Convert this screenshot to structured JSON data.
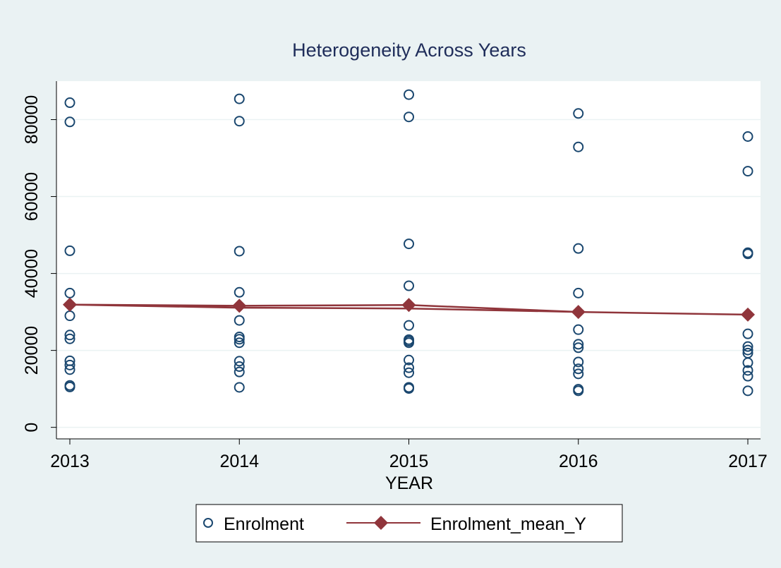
{
  "chart_data": {
    "type": "scatter",
    "title": "Heterogeneity Across Years",
    "xlabel": "YEAR",
    "ylabel": "",
    "x_ticks": [
      "2013",
      "2014",
      "2015",
      "2016",
      "2017"
    ],
    "y_ticks": [
      "0",
      "20000",
      "40000",
      "60000",
      "80000"
    ],
    "xlim": [
      2013,
      2017
    ],
    "ylim": [
      -3000,
      90000
    ],
    "grid": true,
    "legend_position": "bottom",
    "series": [
      {
        "name": "Enrolment",
        "marker": "hollow-circle",
        "color": "#1a476f",
        "points": [
          {
            "x": 2013,
            "y": 84400
          },
          {
            "x": 2013,
            "y": 79400
          },
          {
            "x": 2013,
            "y": 45900
          },
          {
            "x": 2013,
            "y": 34900
          },
          {
            "x": 2013,
            "y": 29000
          },
          {
            "x": 2013,
            "y": 24000
          },
          {
            "x": 2013,
            "y": 23000
          },
          {
            "x": 2013,
            "y": 17300
          },
          {
            "x": 2013,
            "y": 16200
          },
          {
            "x": 2013,
            "y": 15000
          },
          {
            "x": 2013,
            "y": 10900
          },
          {
            "x": 2013,
            "y": 10500
          },
          {
            "x": 2014,
            "y": 85400
          },
          {
            "x": 2014,
            "y": 79600
          },
          {
            "x": 2014,
            "y": 45800
          },
          {
            "x": 2014,
            "y": 35100
          },
          {
            "x": 2014,
            "y": 27800
          },
          {
            "x": 2014,
            "y": 23500
          },
          {
            "x": 2014,
            "y": 22900
          },
          {
            "x": 2014,
            "y": 22000
          },
          {
            "x": 2014,
            "y": 17200
          },
          {
            "x": 2014,
            "y": 15800
          },
          {
            "x": 2014,
            "y": 14400
          },
          {
            "x": 2014,
            "y": 10400
          },
          {
            "x": 2015,
            "y": 86500
          },
          {
            "x": 2015,
            "y": 80700
          },
          {
            "x": 2015,
            "y": 47700
          },
          {
            "x": 2015,
            "y": 36800
          },
          {
            "x": 2015,
            "y": 26500
          },
          {
            "x": 2015,
            "y": 22800
          },
          {
            "x": 2015,
            "y": 22400
          },
          {
            "x": 2015,
            "y": 22000
          },
          {
            "x": 2015,
            "y": 17500
          },
          {
            "x": 2015,
            "y": 15500
          },
          {
            "x": 2015,
            "y": 14200
          },
          {
            "x": 2015,
            "y": 10400
          },
          {
            "x": 2015,
            "y": 10100
          },
          {
            "x": 2016,
            "y": 81600
          },
          {
            "x": 2016,
            "y": 72900
          },
          {
            "x": 2016,
            "y": 46500
          },
          {
            "x": 2016,
            "y": 34900
          },
          {
            "x": 2016,
            "y": 25400
          },
          {
            "x": 2016,
            "y": 21600
          },
          {
            "x": 2016,
            "y": 20700
          },
          {
            "x": 2016,
            "y": 17000
          },
          {
            "x": 2016,
            "y": 15200
          },
          {
            "x": 2016,
            "y": 13900
          },
          {
            "x": 2016,
            "y": 9900
          },
          {
            "x": 2016,
            "y": 9500
          },
          {
            "x": 2017,
            "y": 75600
          },
          {
            "x": 2017,
            "y": 66600
          },
          {
            "x": 2017,
            "y": 45400
          },
          {
            "x": 2017,
            "y": 45100
          },
          {
            "x": 2017,
            "y": 24300
          },
          {
            "x": 2017,
            "y": 21000
          },
          {
            "x": 2017,
            "y": 20100
          },
          {
            "x": 2017,
            "y": 19300
          },
          {
            "x": 2017,
            "y": 16800
          },
          {
            "x": 2017,
            "y": 14800
          },
          {
            "x": 2017,
            "y": 13300
          },
          {
            "x": 2017,
            "y": 9500
          }
        ]
      },
      {
        "name": "Enrolment_mean_Y",
        "marker": "diamond",
        "line": true,
        "color": "#90353b",
        "points": [
          {
            "x": 2013,
            "y": 31900
          },
          {
            "x": 2014,
            "y": 31600
          },
          {
            "x": 2015,
            "y": 31800
          },
          {
            "x": 2016,
            "y": 30000
          },
          {
            "x": 2017,
            "y": 29300
          }
        ],
        "line_path": [
          {
            "x": 2013,
            "y": 31900
          },
          {
            "x": 2014,
            "y": 31600
          },
          {
            "x": 2015,
            "y": 31800
          },
          {
            "x": 2016,
            "y": 30000
          },
          {
            "x": 2017,
            "y": 29300
          },
          {
            "x": 2016,
            "y": 30000
          },
          {
            "x": 2015,
            "y": 30900
          },
          {
            "x": 2014,
            "y": 31100
          },
          {
            "x": 2013,
            "y": 31900
          },
          {
            "x": 2014,
            "y": 31600
          },
          {
            "x": 2015,
            "y": 31800
          },
          {
            "x": 2016,
            "y": 30000
          },
          {
            "x": 2017,
            "y": 29300
          }
        ]
      }
    ]
  }
}
